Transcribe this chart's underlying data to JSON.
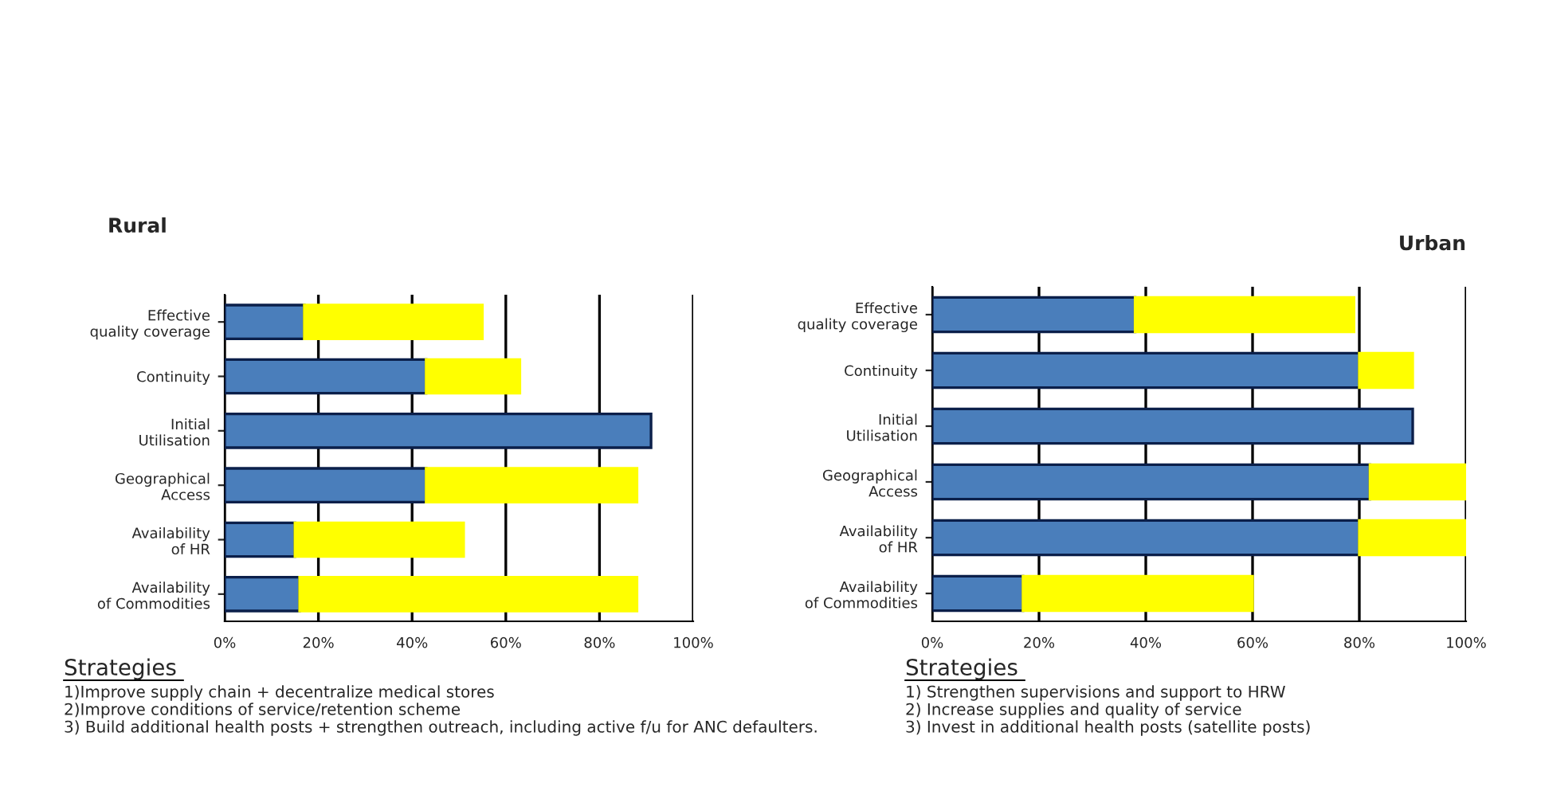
{
  "chart_data": [
    {
      "type": "bar",
      "title": "Rural",
      "orientation": "horizontal",
      "stacked": true,
      "grid": "x",
      "categories": [
        "Effective quality coverage",
        "Continuity",
        "Initial Utilisation",
        "Geographical Access",
        "Availability of HR",
        "Availability of Commodities"
      ],
      "series": [
        {
          "color": "#4a7ebb",
          "values": [
            17,
            43,
            91,
            43,
            15,
            16
          ]
        },
        {
          "color": "#ffff00",
          "values": [
            38,
            20,
            null,
            45,
            36,
            72
          ]
        }
      ],
      "xlim": [
        0,
        100
      ],
      "xticks": [
        {
          "value": 0,
          "label": "0%"
        },
        {
          "value": 20,
          "label": "20%"
        },
        {
          "value": 40,
          "label": "40%"
        },
        {
          "value": 60,
          "label": "60%"
        },
        {
          "value": 80,
          "label": "80%"
        },
        {
          "value": 100,
          "label": "100%"
        }
      ],
      "annotations": [
        "Strategies",
        "1)Improve supply chain + decentralize medical stores",
        "2)Improve conditions of service/retention scheme",
        "3) Build additional health posts + strengthen outreach, including active f/u for ANC defaulters."
      ]
    },
    {
      "type": "bar",
      "title": "Urban",
      "orientation": "horizontal",
      "stacked": true,
      "grid": "x",
      "categories": [
        "Effective quality coverage",
        "Continuity",
        "Initial Utilisation",
        "Geographical Access",
        "Availability of HR",
        "Availability of Commodities"
      ],
      "series": [
        {
          "color": "#4a7ebb",
          "values": [
            38,
            80,
            90,
            82,
            80,
            17
          ]
        },
        {
          "color": "#ffff00",
          "values": [
            41,
            10,
            null,
            18,
            20,
            43
          ]
        }
      ],
      "xlim": [
        0,
        100
      ],
      "xticks": [
        {
          "value": 0,
          "label": "0%"
        },
        {
          "value": 20,
          "label": "20%"
        },
        {
          "value": 40,
          "label": "40%"
        },
        {
          "value": 60,
          "label": "60%"
        },
        {
          "value": 80,
          "label": "80%"
        },
        {
          "value": 100,
          "label": "100%"
        }
      ],
      "annotations": [
        "Strategies",
        "1) Strengthen supervisions and support to HRW",
        "2) Increase supplies and quality of service",
        "3) Invest in additional health posts (satellite posts)"
      ]
    }
  ]
}
